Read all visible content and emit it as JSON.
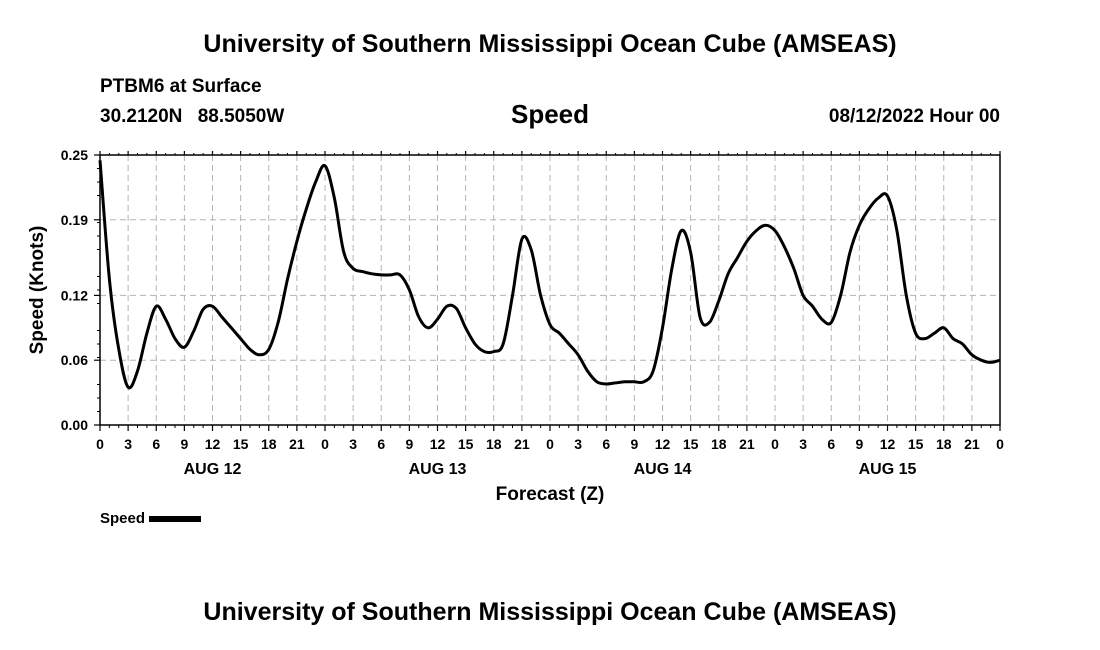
{
  "header": {
    "title": "University of Southern Mississippi Ocean Cube (AMSEAS)",
    "station": "PTBM6 at Surface",
    "lat": "30.2120N",
    "lon": "88.5050W",
    "variable": "Speed",
    "datetime": "08/12/2022 Hour 00"
  },
  "footer": {
    "title": "University of Southern Mississippi Ocean Cube (AMSEAS)"
  },
  "legend": {
    "label": "Speed",
    "color": "#000000"
  },
  "chart_data": {
    "type": "line",
    "title": "Speed",
    "xlabel": "Forecast (Z)",
    "ylabel": "Speed (Knots)",
    "xlim": [
      0,
      96
    ],
    "ylim": [
      0,
      0.25
    ],
    "grid": true,
    "yticks": [
      0.0,
      0.06,
      0.12,
      0.19,
      0.25
    ],
    "ytick_labels": [
      "0.00",
      "0.06",
      "0.12",
      "0.19",
      "0.25"
    ],
    "xticks": [
      0,
      3,
      6,
      9,
      12,
      15,
      18,
      21,
      24,
      27,
      30,
      33,
      36,
      39,
      42,
      45,
      48,
      51,
      54,
      57,
      60,
      63,
      66,
      69,
      72,
      75,
      78,
      81,
      84,
      87,
      90,
      93,
      96
    ],
    "xtick_labels": [
      "0",
      "3",
      "6",
      "9",
      "12",
      "15",
      "18",
      "21",
      "0",
      "3",
      "6",
      "9",
      "12",
      "15",
      "18",
      "21",
      "0",
      "3",
      "6",
      "9",
      "12",
      "15",
      "18",
      "21",
      "0",
      "3",
      "6",
      "9",
      "12",
      "15",
      "18",
      "21",
      "0"
    ],
    "day_labels": [
      {
        "hour": 12,
        "label": "AUG 12"
      },
      {
        "hour": 36,
        "label": "AUG 13"
      },
      {
        "hour": 60,
        "label": "AUG 14"
      },
      {
        "hour": 84,
        "label": "AUG 15"
      }
    ],
    "series": [
      {
        "name": "Speed",
        "color": "#000000",
        "x": [
          0,
          1,
          2,
          3,
          4,
          5,
          6,
          7,
          8,
          9,
          10,
          11,
          12,
          13,
          14,
          15,
          16,
          17,
          18,
          19,
          20,
          21,
          22,
          23,
          24,
          25,
          26,
          27,
          28,
          29,
          30,
          31,
          32,
          33,
          34,
          35,
          36,
          37,
          38,
          39,
          40,
          41,
          42,
          43,
          44,
          45,
          46,
          47,
          48,
          49,
          50,
          51,
          52,
          53,
          54,
          55,
          56,
          57,
          58,
          59,
          60,
          61,
          62,
          63,
          64,
          65,
          66,
          67,
          68,
          69,
          70,
          71,
          72,
          73,
          74,
          75,
          76,
          77,
          78,
          79,
          80,
          81,
          82,
          83,
          84,
          85,
          86,
          87,
          88,
          89,
          90,
          91,
          92,
          93,
          94,
          95,
          96
        ],
        "values": [
          0.245,
          0.135,
          0.07,
          0.035,
          0.05,
          0.085,
          0.11,
          0.098,
          0.08,
          0.072,
          0.087,
          0.107,
          0.11,
          0.1,
          0.09,
          0.08,
          0.07,
          0.065,
          0.07,
          0.095,
          0.135,
          0.17,
          0.2,
          0.225,
          0.24,
          0.21,
          0.16,
          0.145,
          0.142,
          0.14,
          0.139,
          0.139,
          0.139,
          0.125,
          0.1,
          0.09,
          0.098,
          0.11,
          0.108,
          0.09,
          0.075,
          0.068,
          0.068,
          0.075,
          0.12,
          0.172,
          0.162,
          0.12,
          0.093,
          0.085,
          0.075,
          0.065,
          0.05,
          0.04,
          0.038,
          0.039,
          0.04,
          0.04,
          0.04,
          0.05,
          0.09,
          0.145,
          0.18,
          0.16,
          0.1,
          0.095,
          0.115,
          0.14,
          0.155,
          0.17,
          0.18,
          0.185,
          0.18,
          0.165,
          0.145,
          0.12,
          0.11,
          0.098,
          0.095,
          0.12,
          0.16,
          0.185,
          0.2,
          0.21,
          0.212,
          0.18,
          0.12,
          0.085,
          0.08,
          0.085,
          0.09,
          0.08,
          0.075,
          0.065,
          0.06,
          0.058,
          0.06
        ]
      }
    ]
  }
}
